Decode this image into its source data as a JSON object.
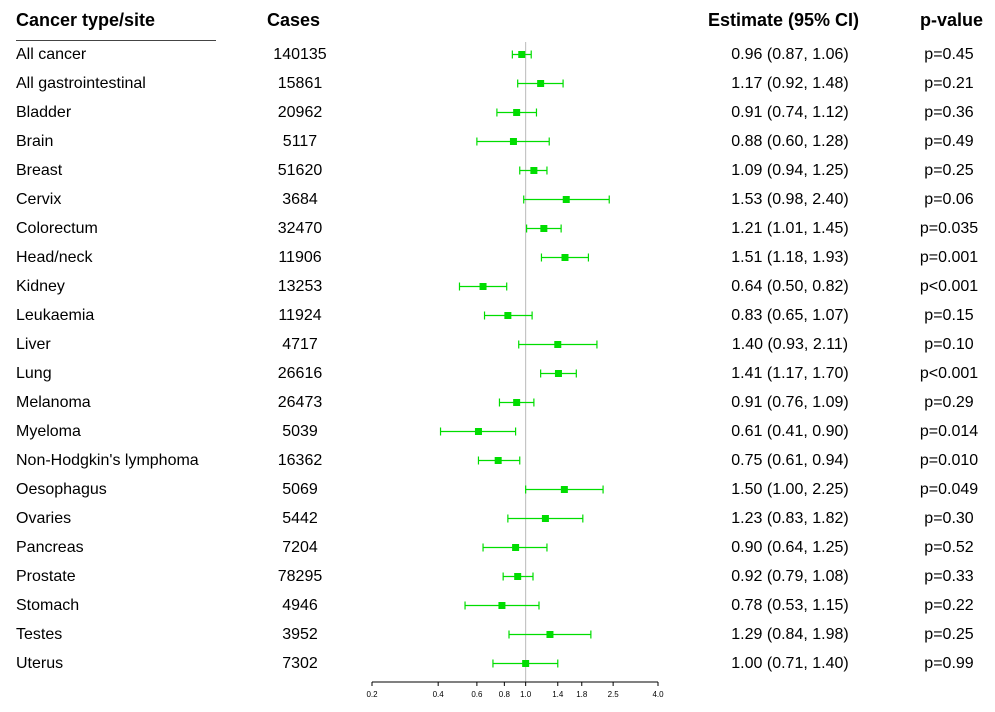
{
  "headers": {
    "type": "Cancer type/site",
    "cases": "Cases",
    "estimate": "Estimate (95% CI)",
    "pvalue": "p-value"
  },
  "rows": [
    {
      "type": "All cancer",
      "cases": "140135",
      "estimate": "0.96 (0.87, 1.06)",
      "p": "p=0.45"
    },
    {
      "type": "All gastrointestinal",
      "cases": "15861",
      "estimate": "1.17 (0.92, 1.48)",
      "p": "p=0.21"
    },
    {
      "type": "Bladder",
      "cases": "20962",
      "estimate": "0.91 (0.74, 1.12)",
      "p": "p=0.36"
    },
    {
      "type": "Brain",
      "cases": "5117",
      "estimate": "0.88 (0.60, 1.28)",
      "p": "p=0.49"
    },
    {
      "type": "Breast",
      "cases": "51620",
      "estimate": "1.09 (0.94, 1.25)",
      "p": "p=0.25"
    },
    {
      "type": "Cervix",
      "cases": "3684",
      "estimate": "1.53 (0.98, 2.40)",
      "p": "p=0.06"
    },
    {
      "type": "Colorectum",
      "cases": "32470",
      "estimate": "1.21 (1.01, 1.45)",
      "p": "p=0.035"
    },
    {
      "type": "Head/neck",
      "cases": "11906",
      "estimate": "1.51 (1.18, 1.93)",
      "p": "p=0.001"
    },
    {
      "type": "Kidney",
      "cases": "13253",
      "estimate": "0.64 (0.50, 0.82)",
      "p": "p<0.001"
    },
    {
      "type": "Leukaemia",
      "cases": "11924",
      "estimate": "0.83 (0.65, 1.07)",
      "p": "p=0.15"
    },
    {
      "type": "Liver",
      "cases": "4717",
      "estimate": "1.40 (0.93, 2.11)",
      "p": "p=0.10"
    },
    {
      "type": "Lung",
      "cases": "26616",
      "estimate": "1.41 (1.17, 1.70)",
      "p": "p<0.001"
    },
    {
      "type": "Melanoma",
      "cases": "26473",
      "estimate": "0.91 (0.76, 1.09)",
      "p": "p=0.29"
    },
    {
      "type": "Myeloma",
      "cases": "5039",
      "estimate": "0.61 (0.41, 0.90)",
      "p": "p=0.014"
    },
    {
      "type": "Non-Hodgkin's lymphoma",
      "cases": "16362",
      "estimate": "0.75 (0.61, 0.94)",
      "p": "p=0.010"
    },
    {
      "type": "Oesophagus",
      "cases": "5069",
      "estimate": "1.50 (1.00, 2.25)",
      "p": "p=0.049"
    },
    {
      "type": "Ovaries",
      "cases": "5442",
      "estimate": "1.23 (0.83, 1.82)",
      "p": "p=0.30"
    },
    {
      "type": "Pancreas",
      "cases": "7204",
      "estimate": "0.90 (0.64, 1.25)",
      "p": "p=0.52"
    },
    {
      "type": "Prostate",
      "cases": "78295",
      "estimate": "0.92 (0.79, 1.08)",
      "p": "p=0.33"
    },
    {
      "type": "Stomach",
      "cases": "4946",
      "estimate": "0.78 (0.53, 1.15)",
      "p": "p=0.22"
    },
    {
      "type": "Testes",
      "cases": "3952",
      "estimate": "1.29 (0.84, 1.98)",
      "p": "p=0.25"
    },
    {
      "type": "Uterus",
      "cases": "7302",
      "estimate": "1.00 (0.71, 1.40)",
      "p": "p=0.99"
    }
  ],
  "chart_data": {
    "type": "forest",
    "x_scale": "log",
    "xlim": [
      0.2,
      4.0
    ],
    "x_ticks": [
      "0.2",
      "0.4",
      "0.6",
      "0.8",
      "1.0",
      "1.4",
      "1.8",
      "2.5",
      "4.0"
    ],
    "reference_line": 1.0,
    "marker_color": "#00dd00",
    "reference_color": "#bbbbbb",
    "categories": [
      "All cancer",
      "All gastrointestinal",
      "Bladder",
      "Brain",
      "Breast",
      "Cervix",
      "Colorectum",
      "Head/neck",
      "Kidney",
      "Leukaemia",
      "Liver",
      "Lung",
      "Melanoma",
      "Myeloma",
      "Non-Hodgkin's lymphoma",
      "Oesophagus",
      "Ovaries",
      "Pancreas",
      "Prostate",
      "Stomach",
      "Testes",
      "Uterus"
    ],
    "estimates": [
      0.96,
      1.17,
      0.91,
      0.88,
      1.09,
      1.53,
      1.21,
      1.51,
      0.64,
      0.83,
      1.4,
      1.41,
      0.91,
      0.61,
      0.75,
      1.5,
      1.23,
      0.9,
      0.92,
      0.78,
      1.29,
      1.0
    ],
    "lower": [
      0.87,
      0.92,
      0.74,
      0.6,
      0.94,
      0.98,
      1.01,
      1.18,
      0.5,
      0.65,
      0.93,
      1.17,
      0.76,
      0.41,
      0.61,
      1.0,
      0.83,
      0.64,
      0.79,
      0.53,
      0.84,
      0.71
    ],
    "upper": [
      1.06,
      1.48,
      1.12,
      1.28,
      1.25,
      2.4,
      1.45,
      1.93,
      0.82,
      1.07,
      2.11,
      1.7,
      1.09,
      0.9,
      0.94,
      2.25,
      1.82,
      1.25,
      1.08,
      1.15,
      1.98,
      1.4
    ]
  }
}
